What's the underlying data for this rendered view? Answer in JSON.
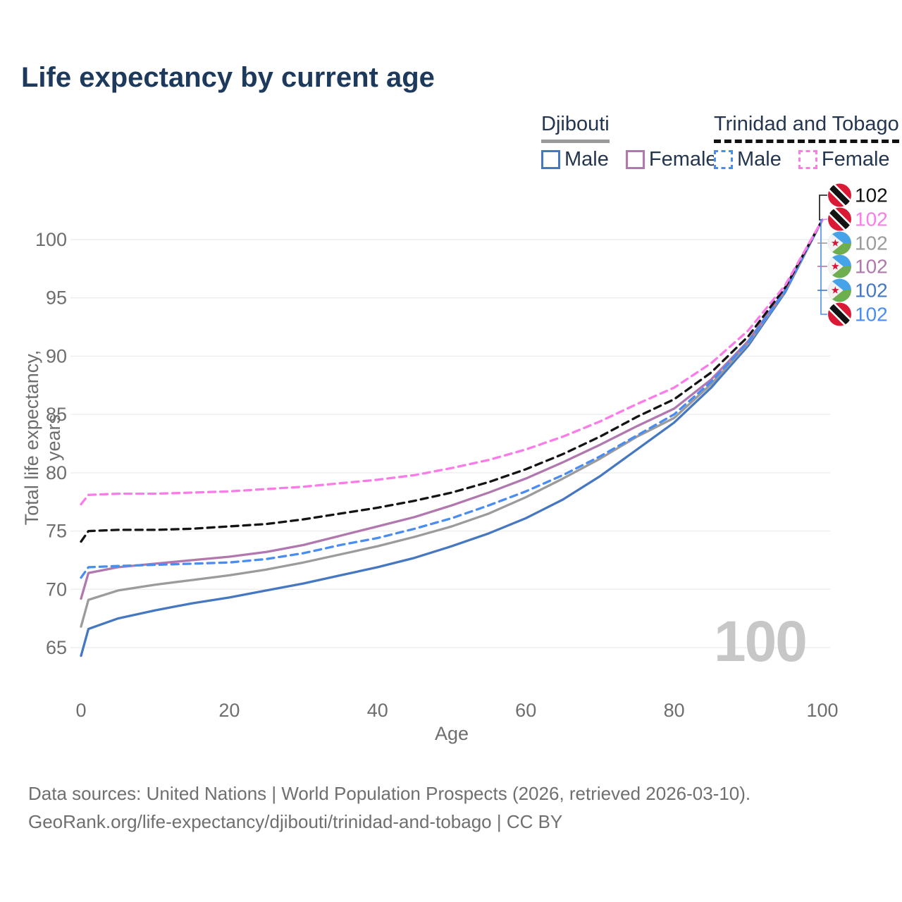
{
  "title": "Life expectancy by current age",
  "legend": {
    "groups": [
      {
        "label": "Djibouti",
        "line_style": "solid",
        "underline_color": "#9a9a9a",
        "items": [
          {
            "label": "Male",
            "color": "#4678c2"
          },
          {
            "label": "Female",
            "color": "#b078ae"
          }
        ]
      },
      {
        "label": "Trinidad and Tobago",
        "line_style": "dashed",
        "underline_color": "#111111",
        "items": [
          {
            "label": "Male",
            "color": "#4a8df2"
          },
          {
            "label": "Female",
            "color": "#fb7ce9"
          }
        ]
      }
    ]
  },
  "watermark": "100",
  "footer": {
    "line1": "Data sources: United Nations | World Population Prospects (2026, retrieved 2026-03-10).",
    "line2": "GeoRank.org/life-expectancy/djibouti/trinidad-and-tobago | CC BY"
  },
  "chart_data": {
    "type": "line",
    "title": "Life expectancy by current age",
    "xlabel": "Age",
    "ylabel": "Total life expectancy, years",
    "xlim": [
      0,
      100
    ],
    "ylim": [
      63,
      103
    ],
    "xticks": [
      0,
      20,
      40,
      60,
      80,
      100
    ],
    "yticks": [
      65,
      70,
      75,
      80,
      85,
      90,
      95,
      100
    ],
    "grid": "horizontal-only",
    "legend_position": "top-right",
    "x": [
      0,
      1,
      5,
      10,
      15,
      20,
      25,
      30,
      35,
      40,
      45,
      50,
      55,
      60,
      65,
      70,
      75,
      80,
      85,
      90,
      95,
      100
    ],
    "series": [
      {
        "name": "Djibouti Male",
        "country": "dj",
        "sex": "male",
        "color": "#4678c2",
        "dashed": false,
        "values": [
          64.3,
          66.6,
          67.5,
          68.2,
          68.8,
          69.3,
          69.9,
          70.5,
          71.2,
          71.9,
          72.7,
          73.7,
          74.8,
          76.1,
          77.7,
          79.7,
          82.0,
          84.3,
          87.3,
          90.9,
          95.5,
          101.7
        ]
      },
      {
        "name": "Djibouti Both sexes",
        "country": "dj",
        "sex": "both",
        "color": "#9b9b9b",
        "dashed": false,
        "values": [
          66.8,
          69.1,
          69.9,
          70.4,
          70.8,
          71.2,
          71.7,
          72.3,
          73.0,
          73.7,
          74.5,
          75.4,
          76.5,
          77.9,
          79.5,
          81.2,
          83.1,
          84.7,
          87.6,
          91.1,
          95.6,
          101.7
        ]
      },
      {
        "name": "Djibouti Female",
        "country": "dj",
        "sex": "female",
        "color": "#b078ae",
        "dashed": false,
        "values": [
          69.2,
          71.4,
          71.9,
          72.2,
          72.5,
          72.8,
          73.2,
          73.8,
          74.6,
          75.4,
          76.2,
          77.2,
          78.3,
          79.5,
          80.9,
          82.4,
          84.0,
          85.5,
          88.0,
          91.3,
          95.7,
          101.7
        ]
      },
      {
        "name": "Trinidad and Tobago Male",
        "country": "tt",
        "sex": "male",
        "color": "#4a8df2",
        "dashed": true,
        "values": [
          71.0,
          71.9,
          72.0,
          72.1,
          72.2,
          72.3,
          72.6,
          73.1,
          73.8,
          74.4,
          75.2,
          76.1,
          77.2,
          78.4,
          79.8,
          81.4,
          83.2,
          85.0,
          87.8,
          91.2,
          95.6,
          101.7
        ]
      },
      {
        "name": "Trinidad and Tobago Both sexes",
        "country": "tt",
        "sex": "both",
        "color": "#141414",
        "dashed": true,
        "values": [
          74.1,
          75.0,
          75.1,
          75.1,
          75.2,
          75.4,
          75.6,
          76.0,
          76.5,
          77.0,
          77.6,
          78.3,
          79.2,
          80.3,
          81.6,
          83.1,
          84.8,
          86.3,
          88.6,
          91.7,
          95.9,
          101.7
        ]
      },
      {
        "name": "Trinidad and Tobago Female",
        "country": "tt",
        "sex": "female",
        "color": "#fb7ce9",
        "dashed": true,
        "values": [
          77.3,
          78.1,
          78.2,
          78.2,
          78.3,
          78.4,
          78.6,
          78.8,
          79.1,
          79.4,
          79.8,
          80.4,
          81.1,
          82.0,
          83.1,
          84.4,
          85.9,
          87.3,
          89.4,
          92.2,
          96.1,
          101.7
        ]
      }
    ],
    "end_labels": [
      {
        "value": "102",
        "color": "#111111",
        "flag": "tt",
        "series": "Trinidad and Tobago Both sexes"
      },
      {
        "value": "102",
        "color": "#fb7ce9",
        "flag": "tt",
        "series": "Trinidad and Tobago Female"
      },
      {
        "value": "102",
        "color": "#9b9b9b",
        "flag": "dj",
        "series": "Djibouti Both sexes"
      },
      {
        "value": "102",
        "color": "#b078ae",
        "flag": "dj",
        "series": "Djibouti Female"
      },
      {
        "value": "102",
        "color": "#4678c2",
        "flag": "dj",
        "series": "Djibouti Male"
      },
      {
        "value": "102",
        "color": "#4a8df2",
        "flag": "tt",
        "series": "Trinidad and Tobago Male"
      }
    ]
  }
}
